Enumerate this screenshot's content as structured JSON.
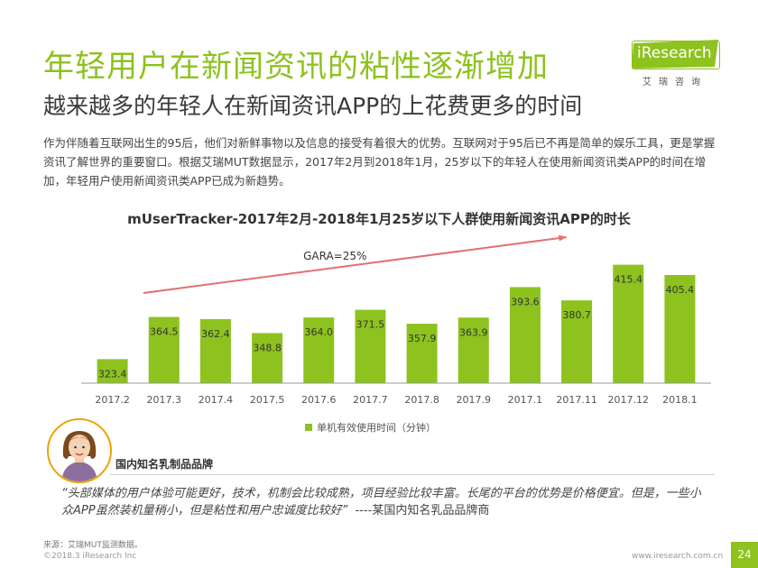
{
  "header": {
    "title": "年轻用户在新闻资讯的粘性逐渐增加",
    "subtitle": "越来越多的年轻人在新闻资讯APP的上花费更多的时间",
    "intro": "作为伴随着互联网出生的95后，他们对新鲜事物以及信息的接受有着很大的优势。互联网对于95后已不再是简单的娱乐工具，更是掌握资讯了解世界的重要窗口。根据艾瑞MUT数据显示，2017年2月到2018年1月，25岁以下的年轻人在使用新闻资讯类APP的时间在增加，年轻用户使用新闻资讯类APP已成为新趋势。"
  },
  "logo": {
    "name": "iResearch",
    "sub": "艾瑞咨询",
    "color": "#8dc21f"
  },
  "chart_data": {
    "type": "bar",
    "title": "mUserTracker-2017年2月-2018年1月25岁以下人群使用新闻资讯APP的时长",
    "categories": [
      "2017.2",
      "2017.3",
      "2017.4",
      "2017.5",
      "2017.6",
      "2017.7",
      "2017.8",
      "2017.9",
      "2017.1",
      "2017.11",
      "2017.12",
      "2018.1"
    ],
    "series": [
      {
        "name": "单机有效使用时间（分钟）",
        "values": [
          323.4,
          364.5,
          362.4,
          348.8,
          364.0,
          371.5,
          357.9,
          363.9,
          393.6,
          380.7,
          415.4,
          405.4
        ],
        "color": "#8dc21f"
      }
    ],
    "value_labels": [
      "323.4",
      "364.5",
      "362.4",
      "348.8",
      "364.0",
      "371.5",
      "357.9",
      "363.9",
      "393.6",
      "380.7",
      "415.4",
      "405.4"
    ],
    "annotation": "GARA=25%",
    "trend_color": "#e07070",
    "legend_position": "bottom",
    "grid": false
  },
  "quote": {
    "label": "国内知名乳制品品牌",
    "text": "“头部媒体的用户体验可能更好，技术，机制会比较成熟，项目经验比较丰富。长尾的平台的优势是价格便宜。但是，一些小众APP虽然装机量稍小，但是粘性和用户忠诚度比较好”",
    "author": "----某国内知名乳品品牌商"
  },
  "footer": {
    "source": "来源：艾瑞MUT监测数据。",
    "copyright": "©2018.3 iResearch Inc",
    "website": "www.iresearch.com.cn",
    "page": "24"
  }
}
